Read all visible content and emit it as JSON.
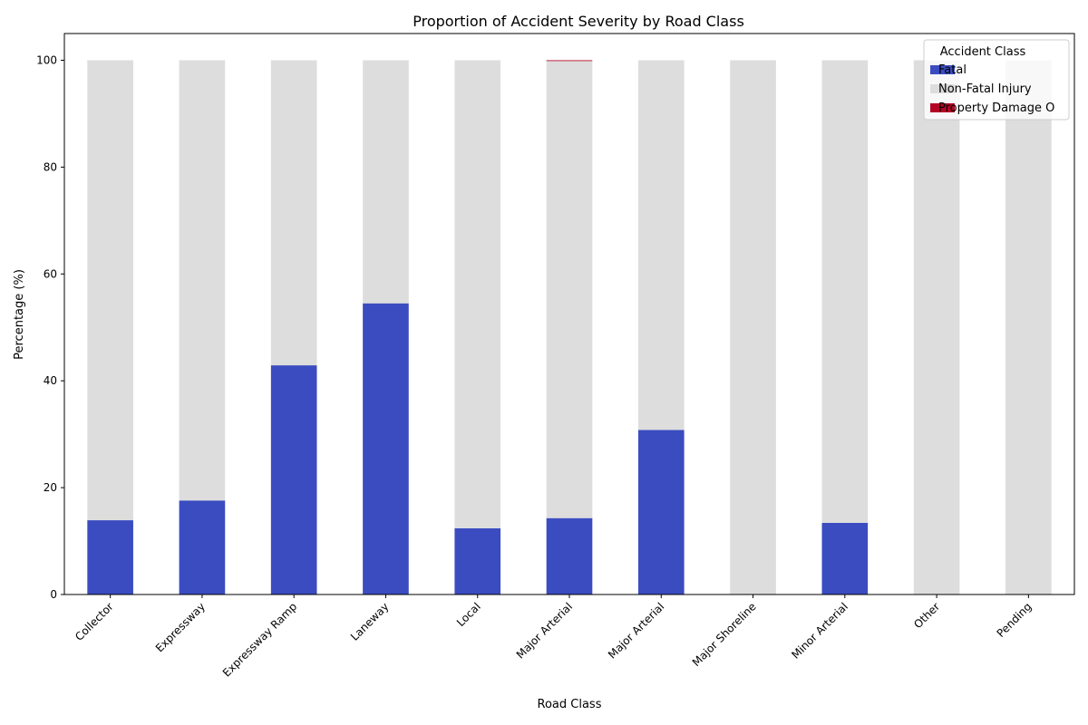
{
  "chart_data": {
    "type": "bar",
    "stacked": true,
    "title": "Proportion of Accident Severity by Road Class",
    "xlabel": "Road Class",
    "ylabel": "Percentage (%)",
    "ylim": [
      0,
      105
    ],
    "yticks": [
      0,
      20,
      40,
      60,
      80,
      100
    ],
    "grid": false,
    "legend_position": "top-right",
    "legend_title": "Accident Class",
    "categories": [
      "Collector",
      "Expressway",
      "Expressway Ramp",
      "Laneway",
      "Local",
      "Major Arterial",
      "Major Arterial",
      "Major Shoreline",
      "Minor Arterial",
      "Other",
      "Pending"
    ],
    "series": [
      {
        "name": "Fatal",
        "color": "#3b4cc0",
        "values": [
          13.9,
          17.6,
          42.9,
          54.5,
          12.4,
          14.3,
          30.8,
          0,
          13.4,
          0,
          0
        ]
      },
      {
        "name": "Non-Fatal Injury",
        "color": "#dddddd",
        "values": [
          86.1,
          82.4,
          57.1,
          45.5,
          87.6,
          85.55,
          69.2,
          100,
          86.6,
          100,
          100
        ]
      },
      {
        "name": "Property Damage O",
        "color": "#b40426",
        "values": [
          0,
          0,
          0,
          0,
          0,
          0.15,
          0,
          0,
          0,
          0,
          0
        ]
      }
    ]
  }
}
